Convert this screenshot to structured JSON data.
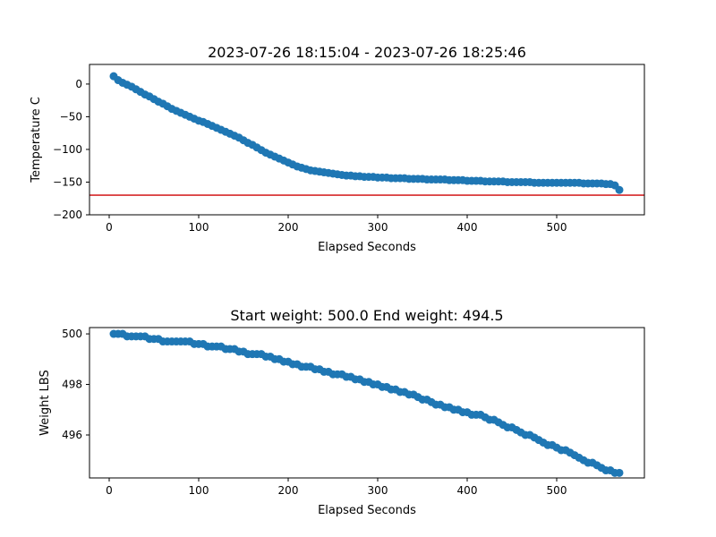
{
  "chart_data": [
    {
      "type": "scatter",
      "title": "2023-07-26 18:15:04 - 2023-07-26 18:25:46",
      "xlabel": "Elapsed Seconds",
      "ylabel": "Temperature C",
      "xlim": [
        -22,
        598
      ],
      "ylim": [
        -200,
        30
      ],
      "xticks": [
        0,
        100,
        200,
        300,
        400,
        500
      ],
      "yticks": [
        0,
        -50,
        -100,
        -150,
        -200
      ],
      "marker_color": "#1f77b4",
      "grid": false,
      "x": [
        5,
        10,
        15,
        20,
        25,
        30,
        35,
        40,
        45,
        50,
        55,
        60,
        65,
        70,
        75,
        80,
        85,
        90,
        95,
        100,
        105,
        110,
        115,
        120,
        125,
        130,
        135,
        140,
        145,
        150,
        155,
        160,
        165,
        170,
        175,
        180,
        185,
        190,
        195,
        200,
        205,
        210,
        215,
        220,
        225,
        230,
        235,
        240,
        245,
        250,
        255,
        260,
        265,
        270,
        275,
        280,
        285,
        290,
        295,
        300,
        305,
        310,
        315,
        320,
        325,
        330,
        335,
        340,
        345,
        350,
        355,
        360,
        365,
        370,
        375,
        380,
        385,
        390,
        395,
        400,
        405,
        410,
        415,
        420,
        425,
        430,
        435,
        440,
        445,
        450,
        455,
        460,
        465,
        470,
        475,
        480,
        485,
        490,
        495,
        500,
        505,
        510,
        515,
        520,
        525,
        530,
        535,
        540,
        545,
        550,
        555,
        560,
        565,
        570
      ],
      "y": [
        12,
        6,
        2,
        -1,
        -4,
        -8,
        -12,
        -16,
        -19,
        -23,
        -27,
        -30,
        -34,
        -38,
        -41,
        -44,
        -47,
        -50,
        -53,
        -56,
        -58,
        -61,
        -64,
        -67,
        -70,
        -73,
        -76,
        -79,
        -82,
        -86,
        -90,
        -93,
        -97,
        -101,
        -105,
        -108,
        -111,
        -114,
        -117,
        -120,
        -123,
        -126,
        -128,
        -130,
        -132,
        -133,
        -134,
        -135,
        -136,
        -137,
        -138,
        -139,
        -140,
        -140,
        -141,
        -141,
        -142,
        -142,
        -142,
        -143,
        -143,
        -143,
        -144,
        -144,
        -144,
        -144,
        -145,
        -145,
        -145,
        -145,
        -146,
        -146,
        -146,
        -146,
        -146,
        -147,
        -147,
        -147,
        -147,
        -148,
        -148,
        -148,
        -148,
        -149,
        -149,
        -149,
        -149,
        -149,
        -150,
        -150,
        -150,
        -150,
        -150,
        -150,
        -151,
        -151,
        -151,
        -151,
        -151,
        -151,
        -151,
        -151,
        -151,
        -151,
        -151,
        -152,
        -152,
        -152,
        -152,
        -152,
        -153,
        -153,
        -155,
        -162
      ],
      "reference_line": {
        "y": -170,
        "color": "#d62728"
      }
    },
    {
      "type": "scatter",
      "title": "Start weight: 500.0 End weight: 494.5",
      "xlabel": "Elapsed Seconds",
      "ylabel": "Weight LBS",
      "xlim": [
        -22,
        598
      ],
      "ylim": [
        494.3,
        500.25
      ],
      "xticks": [
        0,
        100,
        200,
        300,
        400,
        500
      ],
      "yticks": [
        500,
        498,
        496
      ],
      "marker_color": "#1f77b4",
      "grid": false,
      "x": [
        5,
        10,
        15,
        20,
        25,
        30,
        35,
        40,
        45,
        50,
        55,
        60,
        65,
        70,
        75,
        80,
        85,
        90,
        95,
        100,
        105,
        110,
        115,
        120,
        125,
        130,
        135,
        140,
        145,
        150,
        155,
        160,
        165,
        170,
        175,
        180,
        185,
        190,
        195,
        200,
        205,
        210,
        215,
        220,
        225,
        230,
        235,
        240,
        245,
        250,
        255,
        260,
        265,
        270,
        275,
        280,
        285,
        290,
        295,
        300,
        305,
        310,
        315,
        320,
        325,
        330,
        335,
        340,
        345,
        350,
        355,
        360,
        365,
        370,
        375,
        380,
        385,
        390,
        395,
        400,
        405,
        410,
        415,
        420,
        425,
        430,
        435,
        440,
        445,
        450,
        455,
        460,
        465,
        470,
        475,
        480,
        485,
        490,
        495,
        500,
        505,
        510,
        515,
        520,
        525,
        530,
        535,
        540,
        545,
        550,
        555,
        560,
        565,
        570
      ],
      "y": [
        500,
        500,
        500,
        499.9,
        499.9,
        499.9,
        499.9,
        499.9,
        499.8,
        499.8,
        499.8,
        499.7,
        499.7,
        499.7,
        499.7,
        499.7,
        499.7,
        499.7,
        499.6,
        499.6,
        499.6,
        499.5,
        499.5,
        499.5,
        499.5,
        499.4,
        499.4,
        499.4,
        499.3,
        499.3,
        499.2,
        499.2,
        499.2,
        499.2,
        499.1,
        499.1,
        499,
        499,
        498.9,
        498.9,
        498.8,
        498.8,
        498.7,
        498.7,
        498.7,
        498.6,
        498.6,
        498.5,
        498.5,
        498.4,
        498.4,
        498.4,
        498.3,
        498.3,
        498.2,
        498.2,
        498.1,
        498.1,
        498,
        498,
        497.9,
        497.9,
        497.8,
        497.8,
        497.7,
        497.7,
        497.6,
        497.6,
        497.5,
        497.4,
        497.4,
        497.3,
        497.2,
        497.2,
        497.1,
        497.1,
        497,
        497,
        496.9,
        496.9,
        496.8,
        496.8,
        496.8,
        496.7,
        496.6,
        496.6,
        496.5,
        496.4,
        496.3,
        496.3,
        496.2,
        496.1,
        496,
        496,
        495.9,
        495.8,
        495.7,
        495.6,
        495.6,
        495.5,
        495.4,
        495.4,
        495.3,
        495.2,
        495.1,
        495,
        494.9,
        494.9,
        494.8,
        494.7,
        494.6,
        494.6,
        494.5,
        494.5
      ]
    }
  ]
}
